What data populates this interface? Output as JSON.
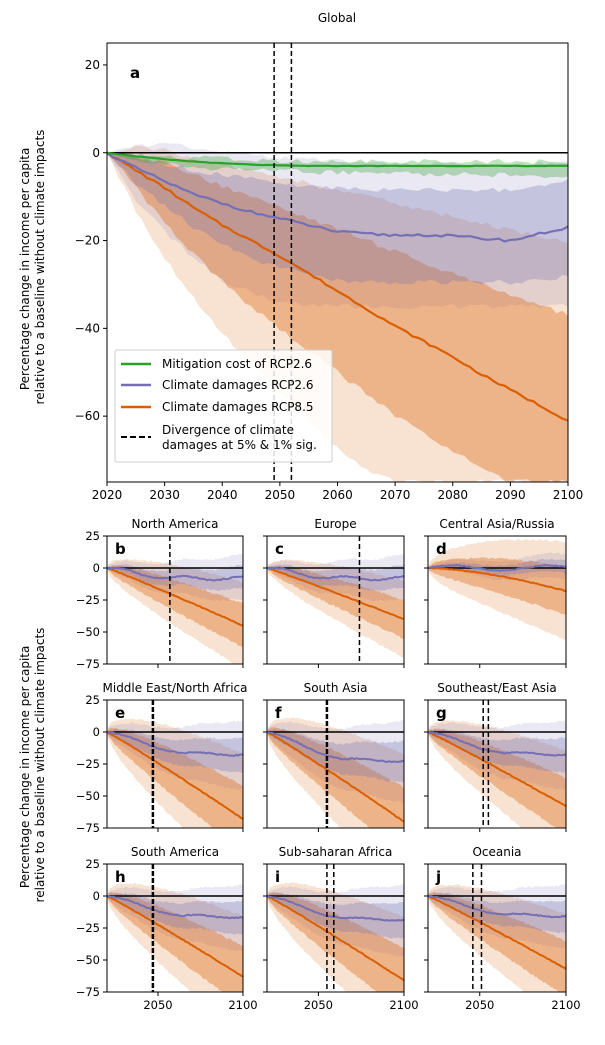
{
  "global": {
    "title": "Global",
    "panel_label": "a",
    "ylabel_line1": "Percentage change in income per capita",
    "ylabel_line2": "relative to a baseline without climate impacts",
    "xlim": [
      2020,
      2100
    ],
    "ylim": [
      -75,
      25
    ],
    "xticks": [
      2020,
      2030,
      2040,
      2050,
      2060,
      2070,
      2080,
      2090,
      2100
    ],
    "yticks": [
      20,
      0,
      -20,
      -40,
      -60
    ],
    "ytick_labels": [
      "20",
      "0",
      "−20",
      "−40",
      "−60"
    ],
    "divergence_years": [
      2049,
      2052
    ]
  },
  "legend": {
    "mitigation": "Mitigation cost of RCP2.6",
    "rcp26": "Climate damages RCP2.6",
    "rcp85": "Climate damages RCP8.5",
    "divergence_line1": "Divergence of climate",
    "divergence_line2": "damages at 5% & 1% sig."
  },
  "regional": {
    "ylabel_line1": "Percentage change in income per capita",
    "ylabel_line2": "relative to a baseline without climate impacts",
    "xlim": [
      2020,
      2100
    ],
    "ylim": [
      -75,
      25
    ],
    "xticks": [
      2050,
      2100
    ],
    "yticks": [
      25,
      0,
      -25,
      -50,
      -75
    ],
    "ytick_labels": [
      "25",
      "0",
      "−25",
      "−50",
      "−75"
    ],
    "panels": [
      {
        "label": "b",
        "title": "North America",
        "rcp26_end": -8,
        "rcp85_end": -45,
        "div": [
          2057
        ],
        "thick": false,
        "shape": "wavy"
      },
      {
        "label": "c",
        "title": "Europe",
        "rcp26_end": -8,
        "rcp85_end": -40,
        "div": [
          2074
        ],
        "thick": false,
        "shape": "wavy"
      },
      {
        "label": "d",
        "title": "Central Asia/Russia",
        "rcp26_end": 0,
        "rcp85_end": -18,
        "div": [],
        "thick": false,
        "shape": "flat"
      },
      {
        "label": "e",
        "title": "Middle East/North Africa",
        "rcp26_end": -17,
        "rcp85_end": -68,
        "div": [
          2047
        ],
        "thick": true,
        "shape": "normal"
      },
      {
        "label": "f",
        "title": "South Asia",
        "rcp26_end": -22,
        "rcp85_end": -70,
        "div": [
          2055
        ],
        "thick": true,
        "shape": "normal"
      },
      {
        "label": "g",
        "title": "Southeast/East Asia",
        "rcp26_end": -17,
        "rcp85_end": -58,
        "div": [
          2052,
          2055
        ],
        "thick": false,
        "shape": "normal"
      },
      {
        "label": "h",
        "title": "South America",
        "rcp26_end": -16,
        "rcp85_end": -63,
        "div": [
          2047
        ],
        "thick": true,
        "shape": "normal"
      },
      {
        "label": "i",
        "title": "Sub-saharan Africa",
        "rcp26_end": -18,
        "rcp85_end": -66,
        "div": [
          2055,
          2059
        ],
        "thick": false,
        "shape": "normal"
      },
      {
        "label": "j",
        "title": "Oceania",
        "rcp26_end": -15,
        "rcp85_end": -57,
        "div": [
          2046,
          2051
        ],
        "thick": false,
        "shape": "normal"
      }
    ]
  },
  "colors": {
    "mitigation": "#2ca02c",
    "rcp26": "#7570b3",
    "rcp85": "#d95f02",
    "divergence": "#000000"
  },
  "chart_data": [
    {
      "type": "line",
      "title": "Global",
      "xlabel": "",
      "ylabel": "Percentage change in income per capita relative to a baseline without climate impacts",
      "xlim": [
        2020,
        2100
      ],
      "ylim": [
        -75,
        25
      ],
      "x": [
        2020,
        2025,
        2030,
        2035,
        2040,
        2045,
        2050,
        2055,
        2060,
        2065,
        2070,
        2075,
        2080,
        2085,
        2090,
        2095,
        2100
      ],
      "series": [
        {
          "name": "Mitigation cost of RCP2.6",
          "values": [
            0,
            -0.8,
            -1.5,
            -2.0,
            -2.4,
            -2.7,
            -2.9,
            -3.0,
            -3.0,
            -3.0,
            -3.0,
            -3.0,
            -3.0,
            -3.0,
            -3.0,
            -3.0,
            -3.0
          ],
          "band_lo": [
            0,
            -1.5,
            -2.5,
            -3.2,
            -3.7,
            -4.0,
            -4.2,
            -4.4,
            -4.5,
            -4.6,
            -4.7,
            -4.8,
            -4.9,
            -5.0,
            -5.1,
            -5.2,
            -5.3
          ],
          "band_hi": [
            0,
            -0.3,
            -0.8,
            -1.1,
            -1.4,
            -1.6,
            -1.8,
            -1.9,
            -2.0,
            -2.0,
            -2.0,
            -2.0,
            -2.0,
            -2.0,
            -2.0,
            -2.0,
            -2.0
          ]
        },
        {
          "name": "Climate damages RCP2.6",
          "values": [
            0,
            -3.5,
            -6.5,
            -9.5,
            -11.5,
            -13.5,
            -15.0,
            -16.5,
            -18.0,
            -18.5,
            -18.8,
            -18.7,
            -19.0,
            -19.5,
            -20.0,
            -18.5,
            -17.0
          ],
          "band_lo": [
            0,
            -7,
            -12,
            -17,
            -21,
            -24,
            -26,
            -28,
            -29,
            -29.5,
            -29.5,
            -29.5,
            -29.5,
            -29.5,
            -29.5,
            -29,
            -28
          ],
          "band_hi": [
            0,
            -1,
            -2.5,
            -4,
            -5,
            -6,
            -7,
            -7.5,
            -8,
            -8.5,
            -8.5,
            -8.5,
            -8.5,
            -8.5,
            -8.5,
            -7.5,
            -6.5
          ],
          "band_outer_lo": [
            0,
            -11,
            -18,
            -24,
            -29,
            -32,
            -34,
            -35,
            -35,
            -35,
            -35,
            -35,
            -35,
            -35,
            -35,
            -35,
            -35
          ],
          "band_outer_hi": [
            0,
            1.5,
            2,
            1,
            0,
            -0.5,
            -1,
            -1.5,
            -2,
            -2.5,
            -2.5,
            -2.5,
            -2.5,
            -2.5,
            -2.5,
            -2.5,
            -2.5
          ]
        },
        {
          "name": "Climate damages RCP8.5",
          "values": [
            0,
            -4,
            -8,
            -12.5,
            -16.5,
            -20,
            -23.5,
            -27.5,
            -31.5,
            -35.5,
            -39.5,
            -43,
            -46.5,
            -50.5,
            -54,
            -57.5,
            -61
          ],
          "band_lo": [
            0,
            -8,
            -16,
            -23,
            -29,
            -35,
            -40,
            -45,
            -50,
            -55,
            -60,
            -64,
            -68,
            -72,
            -75,
            -75,
            -75
          ],
          "band_hi": [
            0,
            -1,
            -2.5,
            -5,
            -7.5,
            -10,
            -12.5,
            -15,
            -17.5,
            -20,
            -22.5,
            -25,
            -27.5,
            -30,
            -32.5,
            -34.5,
            -37
          ],
          "band_outer_lo": [
            0,
            -13,
            -24,
            -33,
            -41,
            -48,
            -55,
            -61,
            -67,
            -72,
            -75,
            -75,
            -75,
            -75,
            -75,
            -75,
            -75
          ],
          "band_outer_hi": [
            0,
            1.5,
            0.5,
            -1,
            -2.5,
            -4,
            -5.5,
            -7,
            -8.5,
            -10,
            -11.5,
            -13,
            -14.5,
            -16,
            -17.5,
            -19,
            -20.5
          ]
        }
      ],
      "vlines": [
        2049,
        2052
      ],
      "legend_position": "lower-left"
    }
  ]
}
